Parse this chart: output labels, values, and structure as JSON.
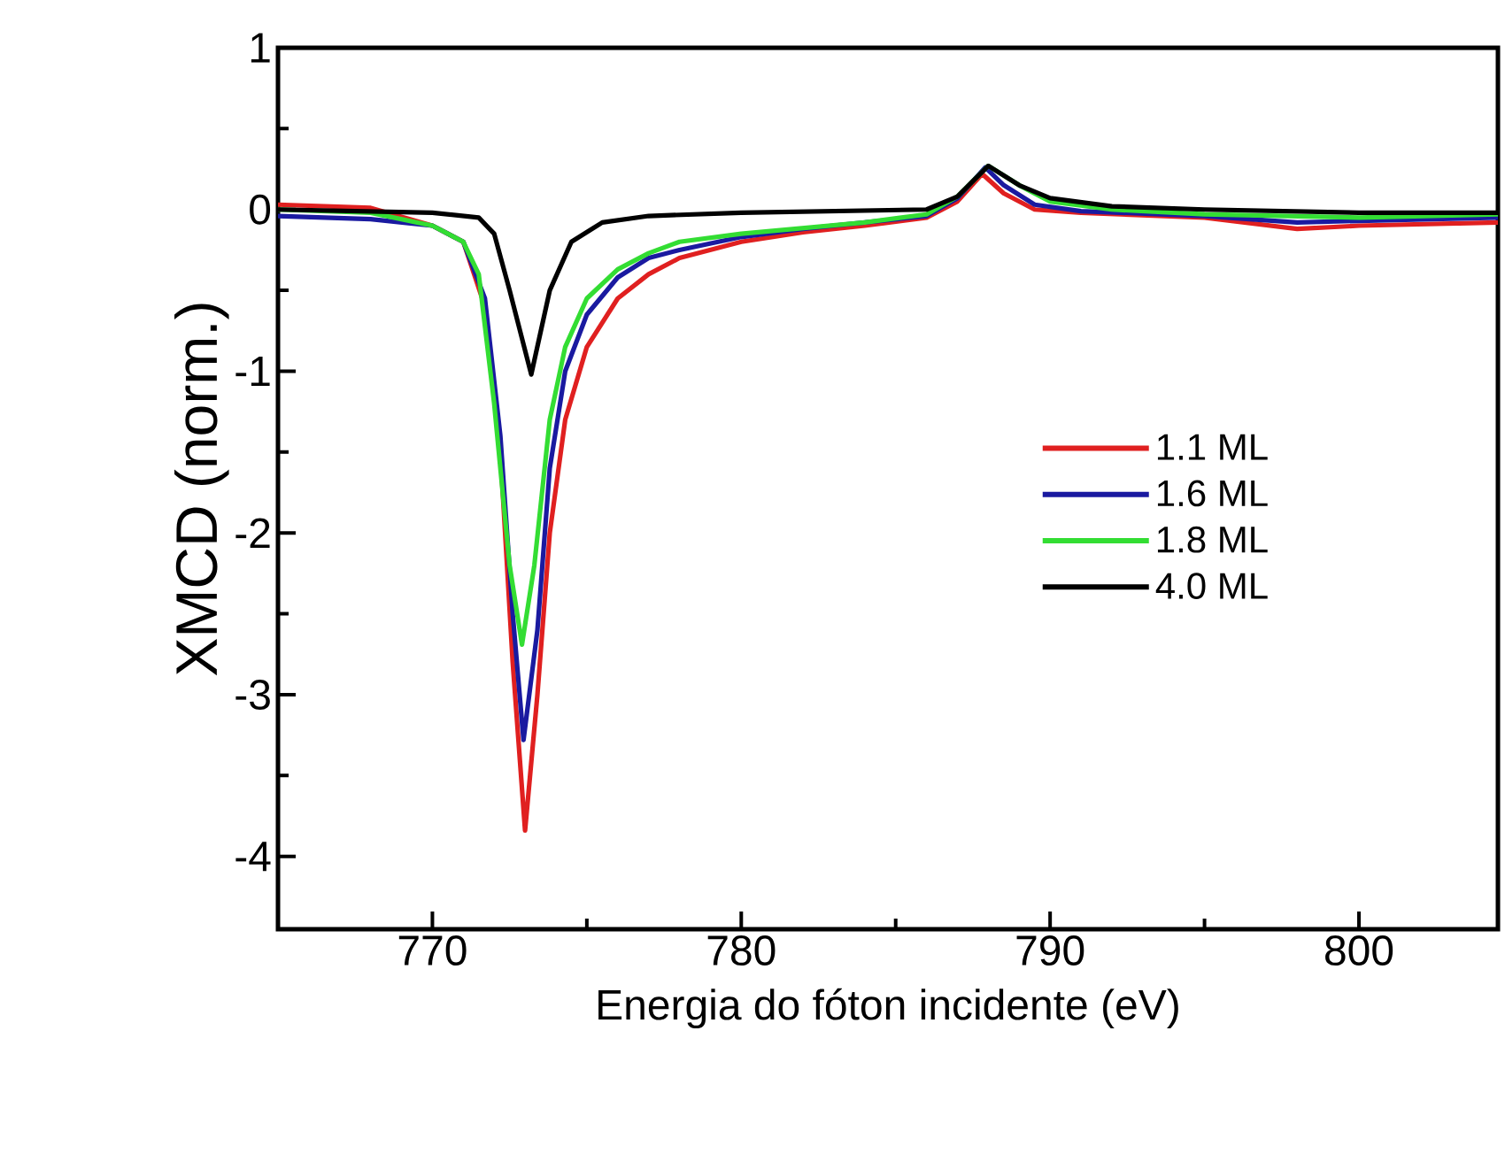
{
  "chart_data": {
    "type": "line",
    "xlabel": "Energia do fóton incidente (eV)",
    "ylabel": "XMCD (norm.)",
    "xlim": [
      765,
      804.5
    ],
    "ylim": [
      -4.45,
      1
    ],
    "xticks": [
      770,
      780,
      790,
      800
    ],
    "yticks": [
      -4,
      -3,
      -2,
      -1,
      0,
      1
    ],
    "legend": "right",
    "grid": false,
    "marker": "none",
    "line_style": "solid",
    "series": [
      {
        "name": "1.1 ML",
        "color": "#e02020",
        "x": [
          765,
          768,
          770,
          771,
          771.7,
          772.2,
          772.6,
          773,
          773.4,
          773.8,
          774.3,
          775,
          776,
          777,
          778,
          780,
          782,
          784,
          786,
          787,
          787.8,
          788.5,
          789.5,
          791,
          795,
          798,
          800,
          804.5
        ],
        "values": [
          0.03,
          0.01,
          -0.1,
          -0.2,
          -0.6,
          -1.5,
          -2.8,
          -3.84,
          -3.0,
          -2.0,
          -1.3,
          -0.85,
          -0.55,
          -0.4,
          -0.3,
          -0.2,
          -0.14,
          -0.1,
          -0.05,
          0.05,
          0.22,
          0.1,
          0.0,
          -0.02,
          -0.05,
          -0.12,
          -0.1,
          -0.08
        ]
      },
      {
        "name": "1.6 ML",
        "color": "#1a1aa0",
        "x": [
          765,
          768,
          770,
          771,
          771.7,
          772.2,
          772.6,
          772.95,
          773.4,
          773.8,
          774.3,
          775,
          776,
          777,
          778,
          780,
          782,
          784,
          786,
          787,
          787.9,
          788.5,
          789.5,
          791,
          795,
          798,
          800,
          804.5
        ],
        "values": [
          -0.04,
          -0.06,
          -0.1,
          -0.2,
          -0.55,
          -1.4,
          -2.5,
          -3.28,
          -2.6,
          -1.6,
          -1.0,
          -0.65,
          -0.42,
          -0.3,
          -0.25,
          -0.17,
          -0.12,
          -0.08,
          -0.04,
          0.07,
          0.26,
          0.15,
          0.03,
          -0.01,
          -0.04,
          -0.08,
          -0.07,
          -0.05
        ]
      },
      {
        "name": "1.8 ML",
        "color": "#33dd33",
        "x": [
          765,
          768,
          770,
          771,
          771.5,
          772,
          772.5,
          772.9,
          773.3,
          773.8,
          774.3,
          775,
          776,
          777,
          778,
          780,
          784,
          786,
          787,
          788,
          789,
          790,
          792,
          795,
          800,
          804.5
        ],
        "values": [
          0,
          -0.02,
          -0.1,
          -0.2,
          -0.4,
          -1.2,
          -2.2,
          -2.69,
          -2.2,
          -1.3,
          -0.85,
          -0.55,
          -0.37,
          -0.27,
          -0.2,
          -0.15,
          -0.08,
          -0.03,
          0.08,
          0.27,
          0.15,
          0.05,
          0.0,
          -0.03,
          -0.05,
          -0.03
        ]
      },
      {
        "name": "4.0 ML",
        "color": "#000000",
        "x": [
          765,
          770,
          771.5,
          772,
          772.5,
          773.2,
          773.8,
          774.5,
          775.5,
          777,
          780,
          786,
          787,
          788,
          789,
          790,
          792,
          795,
          800,
          804.5
        ],
        "values": [
          0,
          -0.02,
          -0.05,
          -0.15,
          -0.5,
          -1.02,
          -0.5,
          -0.2,
          -0.08,
          -0.04,
          -0.02,
          0.0,
          0.08,
          0.27,
          0.15,
          0.07,
          0.02,
          0.0,
          -0.02,
          -0.02
        ]
      }
    ]
  }
}
